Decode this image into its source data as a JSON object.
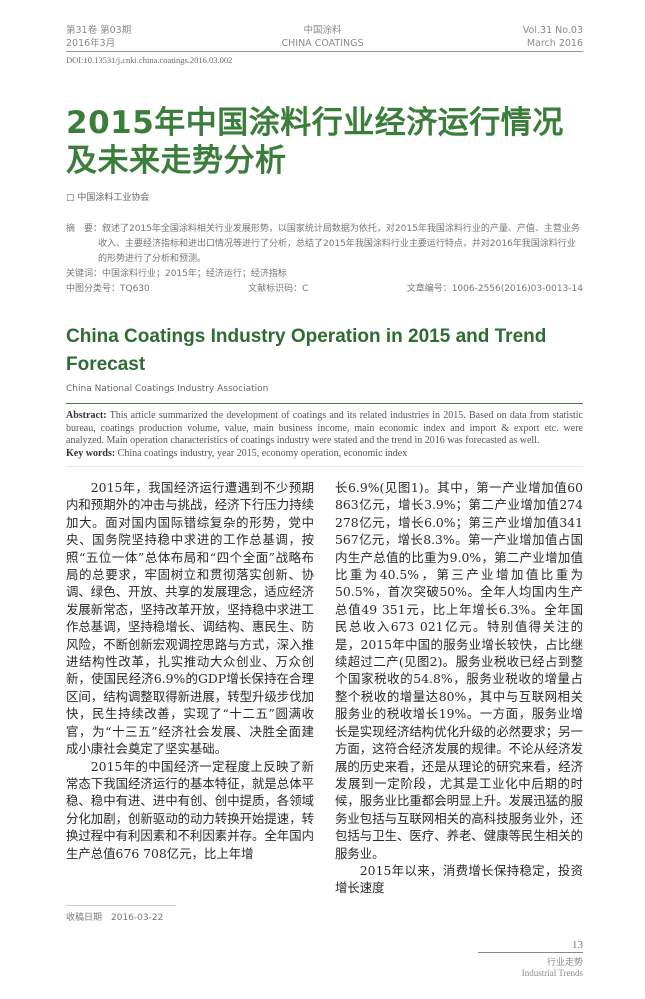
{
  "header": {
    "left_line1": "第31卷 第03期",
    "left_line2": "2016年3月",
    "center_line1": "中国涂料",
    "center_line2": "CHINA COATINGS",
    "right_line1": "Vol.31 No.03",
    "right_line2": "March 2016",
    "doi": "DOI:10.13531/j.cnki.china.coatings.2016.03.002"
  },
  "article": {
    "title": "2015年中国涂料行业经济运行情况及未来走势分析",
    "author": "□ 中国涂料工业协会",
    "abstract_label": "摘　要：",
    "abstract": "叙述了2015年全国涂料相关行业发展形势，以国家统计局数据为依托，对2015年我国涂料行业的产量、产值、主营业务收入、主要经济指标和进出口情况等进行了分析，总结了2015年我国涂料行业主要运行特点，并对2016年我国涂料行业的形势进行了分析和预测。",
    "keywords": "关键词：中国涂料行业；2015年；经济运行；经济指标",
    "clc": "中图分类号：TQ630",
    "doc_code": "文献标识码：C",
    "article_no": "文章编号：1006-2556(2016)03-0013-14",
    "en_title": "China Coatings Industry Operation in 2015 and Trend Forecast",
    "en_author": "China National Coatings Industry Association",
    "en_abstract_label": "Abstract:",
    "en_abstract": " This article summarized the development of coatings and its related industries in 2015. Based on data from statistic bureau, coatings production volume, value, main business income, main economic index and import & export etc. were analyzed. Main operation characteristics of coatings industry were stated and the trend in 2016 was forecasted as well.",
    "en_keywords_label": "Key words:",
    "en_keywords": " China coatings industry, year 2015, economy operation, economic index"
  },
  "body": {
    "left": [
      "2015年，我国经济运行遭遇到不少预期内和预期外的冲击与挑战，经济下行压力持续加大。面对国内国际错综复杂的形势，党中央、国务院坚持稳中求进的工作总基调，按照“五位一体”总体布局和“四个全面”战略布局的总要求，牢固树立和贯彻落实创新、协调、绿色、开放、共享的发展理念，适应经济发展新常态，坚持改革开放，坚持稳中求进工作总基调，坚持稳增长、调结构、惠民生、防风险，不断创新宏观调控思路与方式，深入推进结构性改革，扎实推动大众创业、万众创新，使国民经济6.9%的GDP增长保持在合理区间，结构调整取得新进展，转型升级步伐加快，民生持续改善，实现了“十二五”圆满收官，为“十三五”经济社会发展、决胜全面建成小康社会奠定了坚实基础。",
      "2015年的中国经济一定程度上反映了新常态下我国经济运行的基本特征，就是总体平稳、稳中有进、进中有创、创中提质，各领域分化加剧，创新驱动的动力转换开始提速，转换过程中有利因素和不利因素并存。全年国内生产总值676 708亿元，比上年增"
    ],
    "right": [
      "长6.9%(见图1)。其中，第一产业增加值60 863亿元，增长3.9%；第二产业增加值274 278亿元，增长6.0%；第三产业增加值341 567亿元，增长8.3%。第一产业增加值占国内生产总值的比重为9.0%，第二产业增加值比重为40.5%，第三产业增加值比重为50.5%，首次突破50%。全年人均国内生产总值49 351元，比上年增长6.3%。全年国民总收入673 021亿元。特别值得关注的是，2015年中国的服务业增长较快，占比继续超过二产(见图2)。服务业税收已经占到整个国家税收的54.8%，服务业税收的增量占整个税收的增量达80%，其中与互联网相关服务业的税收增长19%。一方面，服务业增长是实现经济结构优化升级的必然要求；另一方面，这符合经济发展的规律。不论从经济发展的历史来看，还是从理论的研究来看，经济发展到一定阶段，尤其是工业化中后期的时候，服务业比重都会明显上升。发展迅猛的服务业包括与互联网相关的高科技服务业外，还包括与卫生、医疗、养老、健康等民生相关的服务业。",
      "2015年以来，消费增长保持稳定，投资增长速度"
    ]
  },
  "footer": {
    "received": "收稿日期　2016-03-22",
    "page_number": "13",
    "section_cn": "行业走势",
    "section_en": "Industrial Trends"
  },
  "colors": {
    "title_green": "#3b7d3b",
    "en_title_green": "#2f6b35",
    "rule_green": "#4a7a4a"
  }
}
